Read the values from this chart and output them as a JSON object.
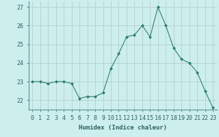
{
  "x": [
    0,
    1,
    2,
    3,
    4,
    5,
    6,
    7,
    8,
    9,
    10,
    11,
    12,
    13,
    14,
    15,
    16,
    17,
    18,
    19,
    20,
    21,
    22,
    23
  ],
  "y": [
    23.0,
    23.0,
    22.9,
    23.0,
    23.0,
    22.9,
    22.1,
    22.2,
    22.2,
    22.4,
    23.7,
    24.5,
    25.4,
    25.5,
    26.0,
    25.4,
    27.0,
    26.0,
    24.8,
    24.2,
    24.0,
    23.5,
    22.5,
    21.6
  ],
  "line_color": "#2e7d6e",
  "marker_color": "#2e7d6e",
  "bg_color": "#cceeed",
  "grid_color": "#b0c8c8",
  "xlabel": "Humidex (Indice chaleur)",
  "xlim": [
    -0.5,
    23.5
  ],
  "ylim": [
    21.5,
    27.3
  ],
  "yticks": [
    22,
    23,
    24,
    25,
    26,
    27
  ],
  "xticks": [
    0,
    1,
    2,
    3,
    4,
    5,
    6,
    7,
    8,
    9,
    10,
    11,
    12,
    13,
    14,
    15,
    16,
    17,
    18,
    19,
    20,
    21,
    22,
    23
  ],
  "axis_fontsize": 6.5,
  "tick_fontsize": 6.0
}
